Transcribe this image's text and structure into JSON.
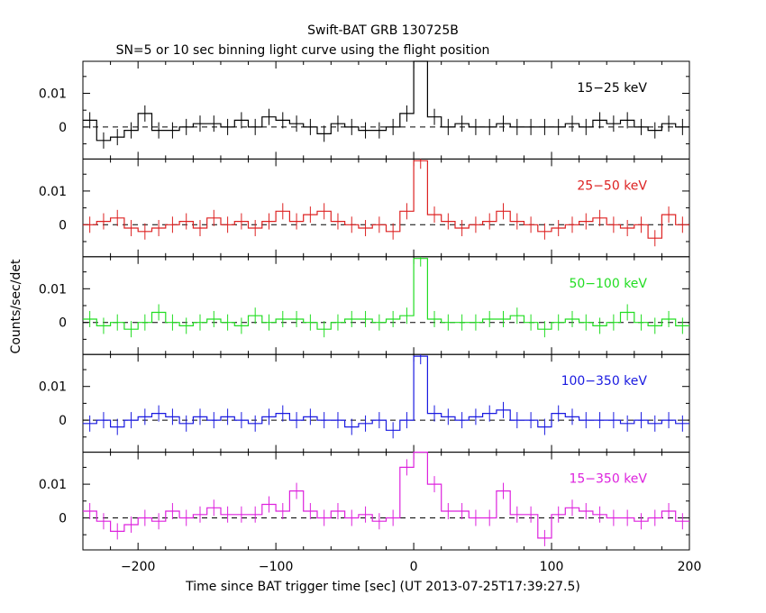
{
  "chart_data": {
    "type": "line",
    "title": "Swift-BAT GRB 130725B",
    "subtitle": "SN=5 or 10 sec binning light curve using the flight position",
    "xlabel": "Time since BAT trigger time [sec] (UT 2013-07-25T17:39:27.5)",
    "ylabel": "Counts/sec/det",
    "xlim": [
      -240,
      200
    ],
    "ylim": [
      -0.0095,
      0.0195
    ],
    "x_ticks": [
      -200,
      -100,
      0,
      100,
      200
    ],
    "x_tick_labels": [
      "−200",
      "−100",
      "0",
      "100",
      "200"
    ],
    "y_ticks": [
      0,
      0.01
    ],
    "y_tick_labels": [
      "0",
      "0.01"
    ],
    "bin_width": 10,
    "panels": [
      {
        "name": "15−25 keV",
        "color": "#000000",
        "bin_starts": [
          -240,
          -230,
          -220,
          -210,
          -200,
          -190,
          -180,
          -170,
          -160,
          -150,
          -140,
          -130,
          -120,
          -110,
          -100,
          -90,
          -80,
          -70,
          -60,
          -50,
          -40,
          -30,
          -20,
          -10,
          0,
          10,
          20,
          30,
          40,
          50,
          60,
          70,
          80,
          90,
          100,
          110,
          120,
          130,
          140,
          150,
          160,
          170,
          180,
          190
        ],
        "values": [
          0.002,
          -0.004,
          -0.003,
          -0.001,
          0.004,
          -0.001,
          -0.001,
          0.0,
          0.001,
          0.001,
          0.0,
          0.002,
          0.0,
          0.003,
          0.002,
          0.001,
          0.0,
          -0.002,
          0.001,
          0.0,
          -0.001,
          -0.001,
          0.0,
          0.004,
          0.026,
          0.003,
          0.0,
          0.001,
          0.0,
          0.0,
          0.001,
          0.0,
          0.0,
          0.0,
          0.0,
          0.001,
          0.0,
          0.002,
          0.001,
          0.002,
          0.0,
          -0.001,
          0.001,
          0.0
        ]
      },
      {
        "name": "25−50 keV",
        "color": "#dd2222",
        "bin_starts": [
          -240,
          -230,
          -220,
          -210,
          -200,
          -190,
          -180,
          -170,
          -160,
          -150,
          -140,
          -130,
          -120,
          -110,
          -100,
          -90,
          -80,
          -70,
          -60,
          -50,
          -40,
          -30,
          -20,
          -10,
          0,
          10,
          20,
          30,
          40,
          50,
          60,
          70,
          80,
          90,
          100,
          110,
          120,
          130,
          140,
          150,
          160,
          170,
          180,
          190
        ],
        "values": [
          0.0,
          0.001,
          0.002,
          -0.001,
          -0.002,
          -0.001,
          0.0,
          0.001,
          -0.001,
          0.002,
          0.0,
          0.001,
          -0.001,
          0.001,
          0.004,
          0.001,
          0.003,
          0.004,
          0.001,
          0.0,
          -0.001,
          0.0,
          -0.002,
          0.004,
          0.019,
          0.003,
          0.001,
          -0.001,
          0.0,
          0.001,
          0.004,
          0.001,
          0.0,
          -0.002,
          -0.001,
          0.0,
          0.001,
          0.002,
          0.0,
          -0.001,
          0.0,
          -0.004,
          0.003,
          0.0
        ]
      },
      {
        "name": "50−100 keV",
        "color": "#22dd22",
        "bin_starts": [
          -240,
          -230,
          -220,
          -210,
          -200,
          -190,
          -180,
          -170,
          -160,
          -150,
          -140,
          -130,
          -120,
          -110,
          -100,
          -90,
          -80,
          -70,
          -60,
          -50,
          -40,
          -30,
          -20,
          -10,
          0,
          10,
          20,
          30,
          40,
          50,
          60,
          70,
          80,
          90,
          100,
          110,
          120,
          130,
          140,
          150,
          160,
          170,
          180,
          190
        ],
        "values": [
          0.001,
          -0.001,
          0.0,
          -0.002,
          0.0,
          0.003,
          0.0,
          -0.001,
          0.0,
          0.001,
          0.0,
          -0.001,
          0.002,
          0.0,
          0.001,
          0.001,
          0.0,
          -0.002,
          0.0,
          0.001,
          0.001,
          0.0,
          0.001,
          0.002,
          0.019,
          0.001,
          0.0,
          0.0,
          0.0,
          0.001,
          0.001,
          0.002,
          0.0,
          -0.002,
          0.0,
          0.001,
          0.0,
          -0.001,
          0.0,
          0.003,
          0.0,
          -0.001,
          0.001,
          -0.001
        ]
      },
      {
        "name": "100−350 keV",
        "color": "#1a1ae0",
        "bin_starts": [
          -240,
          -230,
          -220,
          -210,
          -200,
          -190,
          -180,
          -170,
          -160,
          -150,
          -140,
          -130,
          -120,
          -110,
          -100,
          -90,
          -80,
          -70,
          -60,
          -50,
          -40,
          -30,
          -20,
          -10,
          0,
          10,
          20,
          30,
          40,
          50,
          60,
          70,
          80,
          90,
          100,
          110,
          120,
          130,
          140,
          150,
          160,
          170,
          180,
          190
        ],
        "values": [
          -0.001,
          0.0,
          -0.002,
          0.0,
          0.001,
          0.002,
          0.001,
          -0.001,
          0.001,
          0.0,
          0.001,
          0.0,
          -0.001,
          0.001,
          0.002,
          0.0,
          0.001,
          0.0,
          0.0,
          -0.002,
          -0.001,
          0.0,
          -0.003,
          0.0,
          0.019,
          0.002,
          0.001,
          0.0,
          0.001,
          0.002,
          0.003,
          0.0,
          0.0,
          -0.002,
          0.002,
          0.001,
          0.0,
          0.0,
          0.0,
          -0.001,
          0.0,
          -0.001,
          0.0,
          -0.001
        ]
      },
      {
        "name": "15−350 keV",
        "color": "#dd22dd",
        "bin_starts": [
          -240,
          -230,
          -220,
          -210,
          -200,
          -190,
          -180,
          -170,
          -160,
          -150,
          -140,
          -130,
          -120,
          -110,
          -100,
          -90,
          -80,
          -70,
          -60,
          -50,
          -40,
          -30,
          -20,
          -10,
          0,
          10,
          20,
          30,
          40,
          50,
          60,
          70,
          80,
          90,
          100,
          110,
          120,
          130,
          140,
          150,
          160,
          170,
          180,
          190
        ],
        "values": [
          0.002,
          -0.001,
          -0.004,
          -0.002,
          0.0,
          -0.001,
          0.002,
          0.0,
          0.001,
          0.003,
          0.001,
          0.001,
          0.001,
          0.004,
          0.002,
          0.008,
          0.002,
          0.0,
          0.002,
          0.0,
          0.001,
          -0.001,
          0.0,
          0.015,
          0.027,
          0.01,
          0.002,
          0.002,
          0.0,
          0.0,
          0.008,
          0.001,
          0.001,
          -0.006,
          0.001,
          0.003,
          0.002,
          0.001,
          0.0,
          0.0,
          -0.001,
          0.0,
          0.002,
          -0.001
        ]
      }
    ],
    "grid": false,
    "legend": "panel labels top-right"
  }
}
